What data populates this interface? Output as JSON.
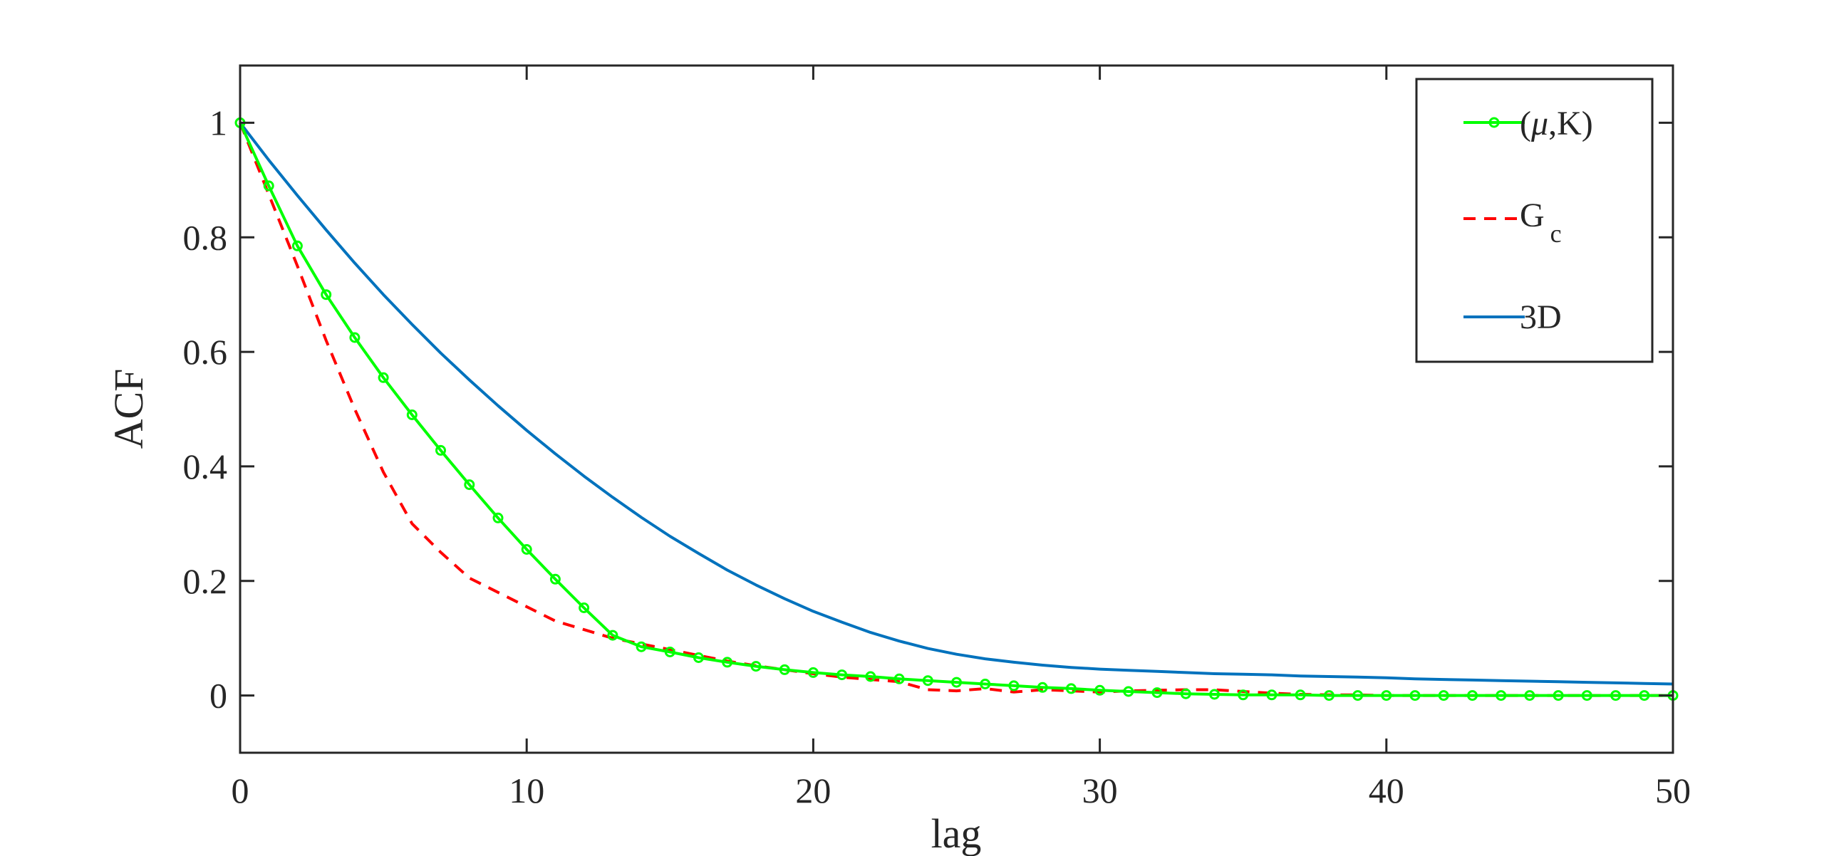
{
  "chart_data": {
    "type": "line",
    "xlabel": "lag",
    "ylabel": "ACF",
    "xlim": [
      0,
      50
    ],
    "ylim": [
      -0.1,
      1.1
    ],
    "xticks": [
      0,
      10,
      20,
      30,
      40,
      50
    ],
    "yticks": [
      0,
      0.2,
      0.4,
      0.6,
      0.8,
      1
    ],
    "xtick_labels": [
      "0",
      "10",
      "20",
      "30",
      "40",
      "50"
    ],
    "ytick_labels": [
      "0",
      "0.2",
      "0.4",
      "0.6",
      "0.8",
      "1"
    ],
    "grid": false,
    "legend_position": "top-right",
    "x": [
      0,
      1,
      2,
      3,
      4,
      5,
      6,
      7,
      8,
      9,
      10,
      11,
      12,
      13,
      14,
      15,
      16,
      17,
      18,
      19,
      20,
      21,
      22,
      23,
      24,
      25,
      26,
      27,
      28,
      29,
      30,
      31,
      32,
      33,
      34,
      35,
      36,
      37,
      38,
      39,
      40,
      41,
      42,
      43,
      44,
      45,
      46,
      47,
      48,
      49,
      50
    ],
    "series": [
      {
        "name": "(μ,K)",
        "label_main": "(",
        "label_symbol": "μ",
        "label_rest": ",K)",
        "color": "#00ff00",
        "style": "solid",
        "marker": "circle",
        "values": [
          1.0,
          0.89,
          0.785,
          0.7,
          0.625,
          0.555,
          0.49,
          0.428,
          0.368,
          0.31,
          0.255,
          0.203,
          0.153,
          0.105,
          0.085,
          0.076,
          0.066,
          0.058,
          0.051,
          0.045,
          0.04,
          0.036,
          0.033,
          0.029,
          0.026,
          0.023,
          0.02,
          0.017,
          0.014,
          0.012,
          0.009,
          0.007,
          0.005,
          0.003,
          0.002,
          0.001,
          0.001,
          0.001,
          0.0,
          0.0,
          0.0,
          0.0,
          0.0,
          0.0,
          0.0,
          0.0,
          0.0,
          0.0,
          0.0,
          0.0,
          0.0
        ]
      },
      {
        "name": "Gc",
        "label_main": "G",
        "label_sub": "c",
        "color": "#ff0000",
        "style": "dashed",
        "marker": "none",
        "values": [
          1.0,
          0.875,
          0.75,
          0.62,
          0.5,
          0.39,
          0.3,
          0.25,
          0.205,
          0.18,
          0.155,
          0.13,
          0.115,
          0.1,
          0.09,
          0.08,
          0.07,
          0.06,
          0.052,
          0.045,
          0.038,
          0.032,
          0.028,
          0.024,
          0.01,
          0.008,
          0.012,
          0.006,
          0.01,
          0.008,
          0.006,
          0.008,
          0.009,
          0.01,
          0.01,
          0.007,
          0.004,
          0.002,
          0.001,
          0.001,
          0.0,
          0.0,
          0.0,
          0.0,
          0.0,
          0.0,
          0.0,
          0.0,
          0.0,
          0.0,
          0.0
        ]
      },
      {
        "name": "3D",
        "label_main": "3D",
        "color": "#0072bd",
        "style": "solid",
        "marker": "none",
        "values": [
          1.0,
          0.935,
          0.873,
          0.813,
          0.755,
          0.7,
          0.648,
          0.598,
          0.551,
          0.506,
          0.463,
          0.422,
          0.383,
          0.346,
          0.311,
          0.278,
          0.248,
          0.219,
          0.193,
          0.169,
          0.147,
          0.128,
          0.11,
          0.095,
          0.082,
          0.072,
          0.064,
          0.058,
          0.053,
          0.049,
          0.046,
          0.044,
          0.042,
          0.04,
          0.038,
          0.037,
          0.036,
          0.034,
          0.033,
          0.032,
          0.031,
          0.029,
          0.028,
          0.027,
          0.026,
          0.025,
          0.024,
          0.023,
          0.022,
          0.021,
          0.02
        ]
      }
    ]
  }
}
